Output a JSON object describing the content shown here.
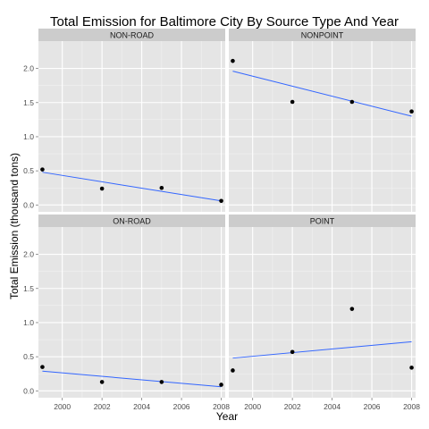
{
  "chart_data": {
    "type": "scatter",
    "title": "Total Emission for Baltimore City By Source Type And Year",
    "xlabel": "Year",
    "ylabel": "Total Emission (thousand tons)",
    "xlim": [
      1998.8,
      2008.2
    ],
    "ylim": [
      -0.1,
      2.4
    ],
    "x_ticks": [
      2000,
      2002,
      2004,
      2006,
      2008
    ],
    "y_ticks": [
      0.0,
      0.5,
      1.0,
      1.5,
      2.0
    ],
    "x_tick_labels": [
      "2000",
      "2002",
      "2004",
      "2006",
      "2008"
    ],
    "y_tick_labels": [
      "0.0",
      "0.5",
      "1.0",
      "1.5",
      "2.0"
    ],
    "grid": true,
    "panel_background": "#e5e5e5",
    "strip_background": "#cccccc",
    "point_color": "#000000",
    "trend_color": "#3366ff",
    "facets": [
      {
        "label": "NON-ROAD",
        "x": [
          1999,
          2002,
          2005,
          2008
        ],
        "y": [
          0.52,
          0.24,
          0.25,
          0.06
        ],
        "trend": [
          [
            1999,
            0.48
          ],
          [
            2008,
            0.06
          ]
        ]
      },
      {
        "label": "NONPOINT",
        "x": [
          1999,
          2002,
          2005,
          2008
        ],
        "y": [
          2.11,
          1.51,
          1.51,
          1.37
        ],
        "trend": [
          [
            1999,
            1.96
          ],
          [
            2008,
            1.3
          ]
        ]
      },
      {
        "label": "ON-ROAD",
        "x": [
          1999,
          2002,
          2005,
          2008
        ],
        "y": [
          0.35,
          0.13,
          0.13,
          0.09
        ],
        "trend": [
          [
            1999,
            0.29
          ],
          [
            2008,
            0.06
          ]
        ]
      },
      {
        "label": "POINT",
        "x": [
          1999,
          2002,
          2005,
          2008
        ],
        "y": [
          0.3,
          0.57,
          1.2,
          0.34
        ],
        "trend": [
          [
            1999,
            0.48
          ],
          [
            2008,
            0.72
          ]
        ]
      }
    ]
  }
}
